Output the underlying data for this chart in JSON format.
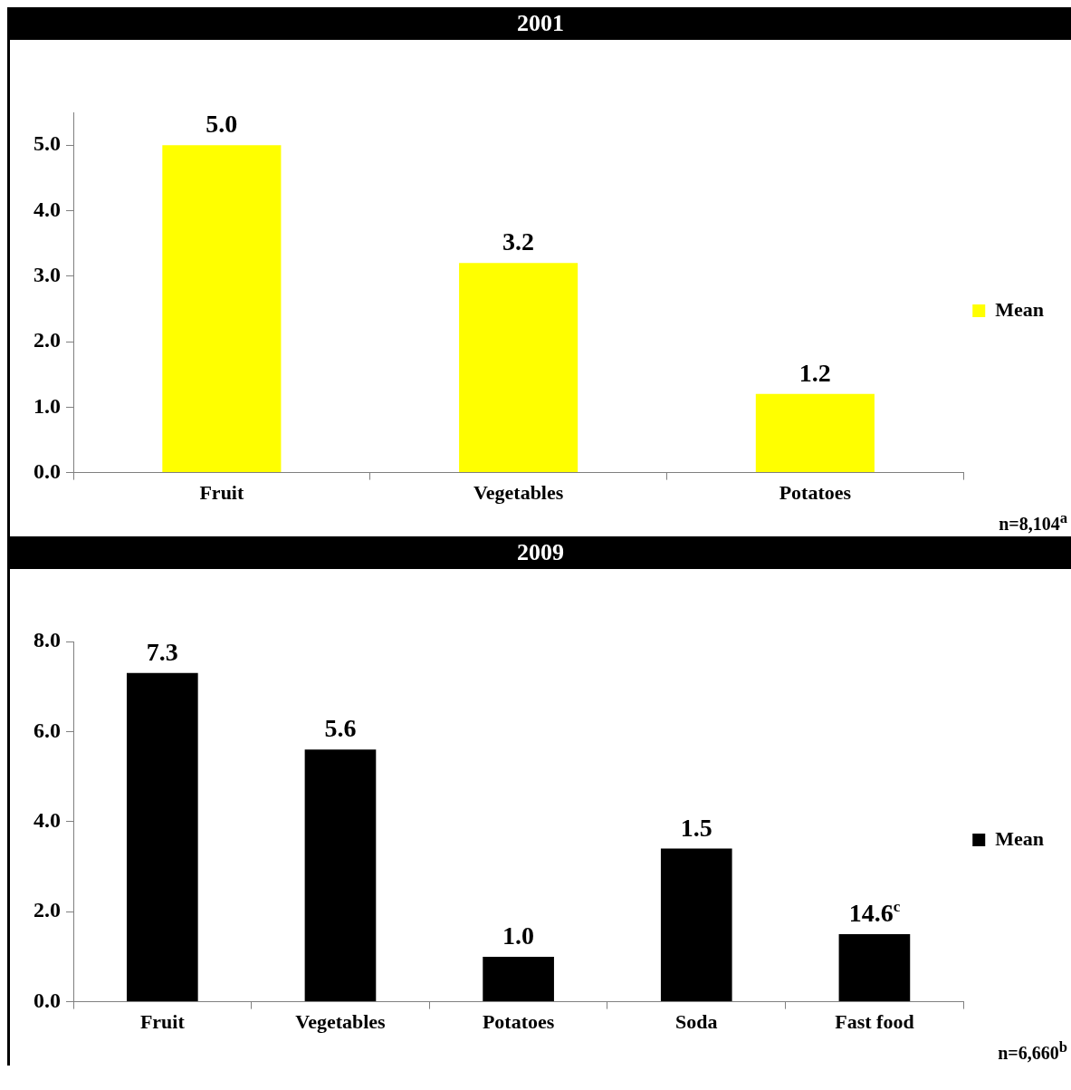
{
  "chart_data": [
    {
      "type": "bar",
      "title": "2001",
      "categories": [
        "Fruit",
        "Vegetables",
        "Potatoes"
      ],
      "series": [
        {
          "name": "Mean",
          "color": "#ffff00",
          "values": [
            5.0,
            3.2,
            1.2
          ],
          "value_labels": [
            "5.0",
            "3.2",
            "1.2"
          ]
        }
      ],
      "ylim": [
        0,
        5.5
      ],
      "yticks": [
        {
          "value": 0,
          "label": "0.0"
        },
        {
          "value": 1,
          "label": "1.0"
        },
        {
          "value": 2,
          "label": "2.0"
        },
        {
          "value": 3,
          "label": "3.0"
        },
        {
          "value": 4,
          "label": "4.0"
        },
        {
          "value": 5,
          "label": "5.0"
        }
      ],
      "legend": "right",
      "annotations": [
        "n=8,104$^{a}$"
      ]
    },
    {
      "type": "bar",
      "title": "2009",
      "categories": [
        "Fruit",
        "Vegetables",
        "Potatoes",
        "Soda",
        "Fast food"
      ],
      "series": [
        {
          "name": "Mean",
          "color": "#000000",
          "values": [
            7.3,
            5.6,
            1.0,
            3.4,
            1.5
          ],
          "value_labels": [
            "7.3",
            "5.6",
            "1.0",
            null,
            null
          ]
        }
      ],
      "ylim": [
        0,
        8
      ],
      "yticks": [
        {
          "value": 0,
          "label": "0.0"
        },
        {
          "value": 2,
          "label": "2.0"
        },
        {
          "value": 4,
          "label": "4.0"
        },
        {
          "value": 6,
          "label": "6.0"
        },
        {
          "value": 8,
          "label": "8.0"
        }
      ],
      "legend": "right",
      "annotations": [
        "n=6,660$^{b}$",
        {
          "text": "1.5",
          "x": "Soda",
          "y": 3.4
        },
        {
          "text": "14.6$^{c}$",
          "x": "Fast food",
          "y": 1.5
        }
      ]
    }
  ]
}
